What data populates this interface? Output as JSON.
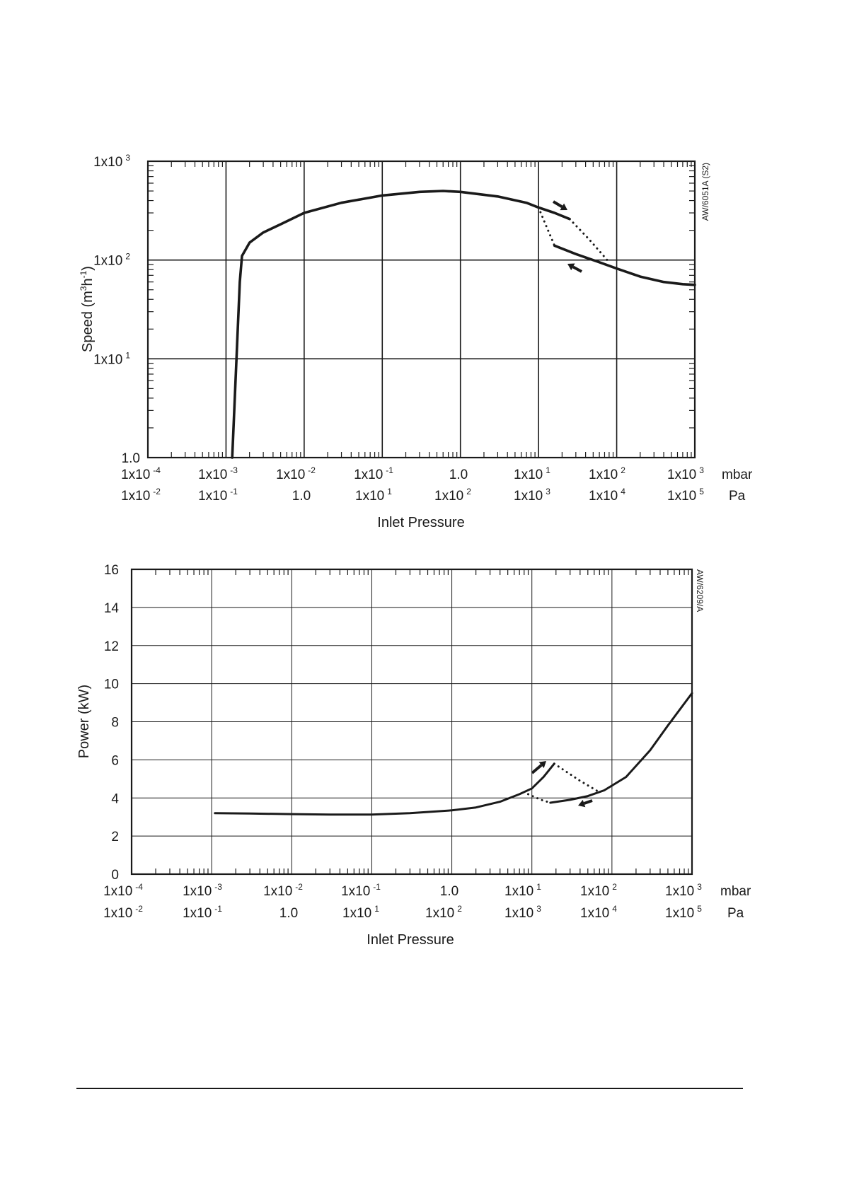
{
  "chart_data": [
    {
      "type": "line",
      "title": "",
      "ref_code": "AW/6051A (S2)",
      "ylabel": "Speed (m³h⁻¹)",
      "ylabel_parts": {
        "base": "Speed (m",
        "sup1": "3",
        "mid": "h",
        "sup2": "-1",
        "end": ")"
      },
      "xlabel": "Inlet Pressure",
      "x_scale": "log",
      "y_scale": "log",
      "xlim_mbar": [
        0.0001,
        1000
      ],
      "ylim": [
        1,
        1000
      ],
      "grid": true,
      "y_tick_labels": [
        {
          "base": "1.0",
          "exp": ""
        },
        {
          "base": "1x10",
          "exp": "1"
        },
        {
          "base": "1x10",
          "exp": "2"
        },
        {
          "base": "1x10",
          "exp": "3"
        }
      ],
      "x_tick_labels_mbar": [
        {
          "base": "1x10",
          "exp": "-4"
        },
        {
          "base": "1x10",
          "exp": "-3"
        },
        {
          "base": "1x10",
          "exp": "-2"
        },
        {
          "base": "1x10",
          "exp": "-1"
        },
        {
          "base": "1.0",
          "exp": ""
        },
        {
          "base": "1x10",
          "exp": "1"
        },
        {
          "base": "1x10",
          "exp": "2"
        },
        {
          "base": "1x10",
          "exp": "3"
        }
      ],
      "x_tick_labels_pa": [
        {
          "base": "1x10",
          "exp": "-2"
        },
        {
          "base": "1x10",
          "exp": "-1"
        },
        {
          "base": "1.0",
          "exp": ""
        },
        {
          "base": "1x10",
          "exp": "1"
        },
        {
          "base": "1x10",
          "exp": "2"
        },
        {
          "base": "1x10",
          "exp": "3"
        },
        {
          "base": "1x10",
          "exp": "4"
        },
        {
          "base": "1x10",
          "exp": "5"
        }
      ],
      "unit_mbar": "mbar",
      "unit_pa": "Pa",
      "series": [
        {
          "style": "solid",
          "points": [
            [
              0.0012,
              1.0
            ],
            [
              0.0015,
              60
            ],
            [
              0.0016,
              110
            ],
            [
              0.002,
              150
            ],
            [
              0.003,
              190
            ],
            [
              0.005,
              230
            ],
            [
              0.01,
              300
            ],
            [
              0.03,
              380
            ],
            [
              0.1,
              450
            ],
            [
              0.3,
              490
            ],
            [
              0.6,
              500
            ],
            [
              1,
              490
            ],
            [
              3,
              440
            ],
            [
              7,
              380
            ],
            [
              10,
              340
            ],
            [
              16,
              300
            ],
            [
              25,
              260
            ]
          ]
        },
        {
          "style": "solid",
          "points": [
            [
              16,
              140
            ],
            [
              30,
              115
            ],
            [
              60,
              95
            ],
            [
              100,
              82
            ],
            [
              200,
              68
            ],
            [
              400,
              60
            ],
            [
              700,
              57
            ],
            [
              1000,
              56
            ]
          ]
        },
        {
          "style": "dotted",
          "points": [
            [
              10,
              340
            ],
            [
              12,
              240
            ],
            [
              16,
              140
            ]
          ]
        },
        {
          "style": "dotted",
          "points": [
            [
              25,
              260
            ],
            [
              45,
              160
            ],
            [
              80,
              95
            ]
          ]
        }
      ]
    },
    {
      "type": "line",
      "title": "",
      "ref_code": "AW/6209/A",
      "ylabel": "Power (kW)",
      "xlabel": "Inlet Pressure",
      "x_scale": "log",
      "y_scale": "linear",
      "xlim_mbar": [
        0.0001,
        1000
      ],
      "ylim": [
        0,
        16
      ],
      "grid": true,
      "y_tick_labels": [
        "0",
        "2",
        "4",
        "6",
        "8",
        "10",
        "12",
        "14",
        "16"
      ],
      "x_tick_labels_mbar": [
        {
          "base": "1x10",
          "exp": "-4"
        },
        {
          "base": "1x10",
          "exp": "-3"
        },
        {
          "base": "1x10",
          "exp": "-2"
        },
        {
          "base": "1x10",
          "exp": "-1"
        },
        {
          "base": "1.0",
          "exp": ""
        },
        {
          "base": "1x10",
          "exp": "1"
        },
        {
          "base": "1x10",
          "exp": "2"
        },
        {
          "base": "1x10",
          "exp": "3"
        }
      ],
      "x_tick_labels_pa": [
        {
          "base": "1x10",
          "exp": "-2"
        },
        {
          "base": "1x10",
          "exp": "-1"
        },
        {
          "base": "1.0",
          "exp": ""
        },
        {
          "base": "1x10",
          "exp": "1"
        },
        {
          "base": "1x10",
          "exp": "2"
        },
        {
          "base": "1x10",
          "exp": "3"
        },
        {
          "base": "1x10",
          "exp": "4"
        },
        {
          "base": "1x10",
          "exp": "5"
        }
      ],
      "unit_mbar": "mbar",
      "unit_pa": "Pa",
      "series": [
        {
          "style": "solid",
          "points": [
            [
              0.0011,
              3.2
            ],
            [
              0.003,
              3.18
            ],
            [
              0.01,
              3.15
            ],
            [
              0.03,
              3.13
            ],
            [
              0.1,
              3.13
            ],
            [
              0.3,
              3.2
            ],
            [
              1,
              3.35
            ],
            [
              2,
              3.5
            ],
            [
              4,
              3.8
            ],
            [
              7,
              4.2
            ],
            [
              10,
              4.5
            ],
            [
              14,
              5.1
            ],
            [
              19,
              5.8
            ]
          ]
        },
        {
          "style": "solid",
          "points": [
            [
              17,
              3.75
            ],
            [
              30,
              3.9
            ],
            [
              50,
              4.1
            ],
            [
              80,
              4.4
            ],
            [
              150,
              5.1
            ],
            [
              300,
              6.5
            ],
            [
              500,
              7.8
            ],
            [
              1000,
              9.5
            ]
          ]
        },
        {
          "style": "dotted",
          "points": [
            [
              9,
              4.2
            ],
            [
              13,
              3.9
            ],
            [
              17,
              3.75
            ]
          ]
        },
        {
          "style": "dotted",
          "points": [
            [
              19,
              5.8
            ],
            [
              40,
              4.9
            ],
            [
              70,
              4.3
            ]
          ]
        }
      ]
    }
  ]
}
